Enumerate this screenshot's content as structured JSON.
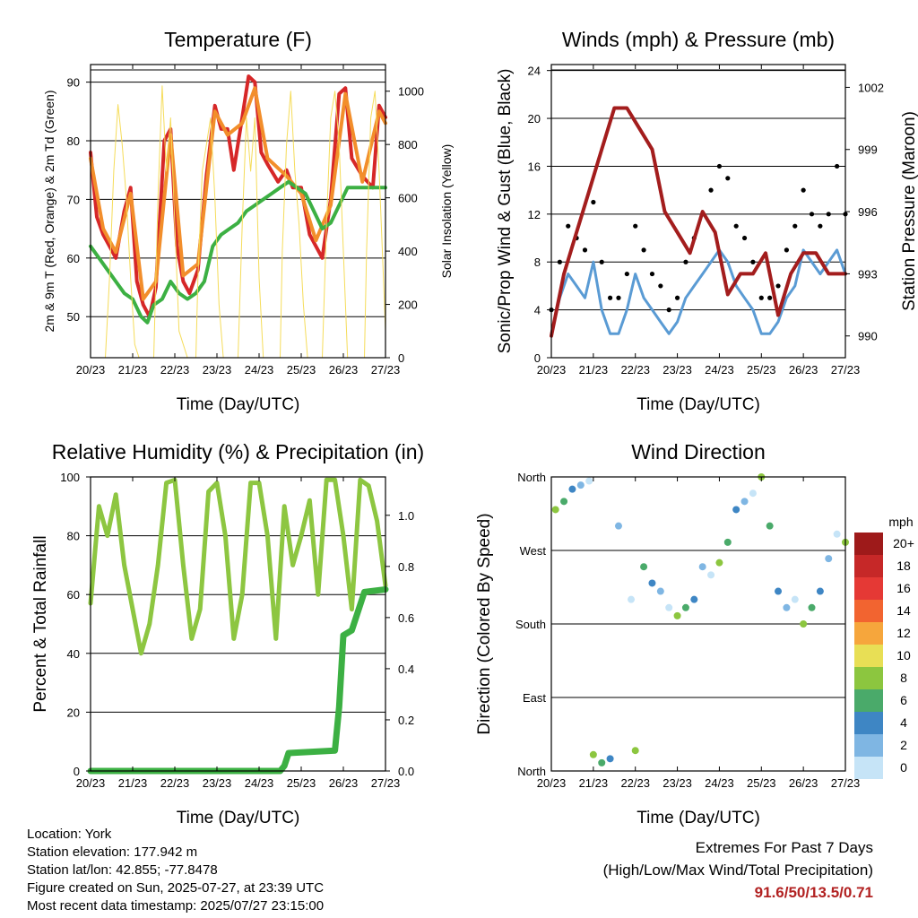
{
  "chart_data": [
    {
      "type": "line",
      "title": "Temperature (F)",
      "xlabel": "Time (Day/UTC)",
      "ylabel": "2m & 9m T (Red, Orange) & 2m Td (Green)",
      "ylabel_right": "Solar Insolation (Yellow)",
      "xticks": [
        "20/23",
        "21/23",
        "22/23",
        "23/23",
        "24/23",
        "25/23",
        "26/23",
        "27/23"
      ],
      "ylim": [
        43,
        93
      ],
      "yticks": [
        50,
        60,
        70,
        80,
        90
      ],
      "y2lim": [
        0,
        1100
      ],
      "y2ticks": [
        0,
        200,
        400,
        600,
        800,
        1000
      ],
      "grid": true,
      "series": [
        {
          "color": "#d62728",
          "x": [
            0,
            0.15,
            0.3,
            0.45,
            0.6,
            0.8,
            0.95,
            1.1,
            1.25,
            1.4,
            1.55,
            1.75,
            1.9,
            2.05,
            2.2,
            2.35,
            2.55,
            2.75,
            2.95,
            3.1,
            3.25,
            3.4,
            3.6,
            3.75,
            3.9,
            4.05,
            4.2,
            4.45,
            4.65,
            4.8,
            5.0,
            5.2,
            5.35,
            5.5,
            5.7,
            5.9,
            6.05,
            6.2,
            6.45,
            6.7,
            6.85,
            7.0
          ],
          "values": [
            78,
            67,
            64,
            62,
            60,
            68,
            72,
            56,
            52,
            50,
            55,
            80,
            82,
            62,
            56,
            54,
            58,
            74,
            86,
            82,
            82,
            75,
            84,
            91,
            90,
            78,
            76,
            73,
            75,
            72,
            72,
            64,
            62,
            60,
            70,
            88,
            89,
            77,
            74,
            72,
            86,
            84
          ]
        },
        {
          "color": "#f28e2b",
          "x": [
            0,
            0.3,
            0.6,
            0.95,
            1.25,
            1.55,
            1.9,
            2.2,
            2.55,
            2.95,
            3.25,
            3.6,
            3.9,
            4.2,
            4.65,
            5.0,
            5.35,
            5.7,
            6.05,
            6.45,
            6.85,
            7.0
          ],
          "values": [
            77,
            65,
            61,
            71,
            53,
            56,
            81,
            57,
            59,
            85,
            81,
            83,
            89,
            77,
            74,
            71,
            63,
            69,
            88,
            73,
            85,
            83
          ]
        },
        {
          "color": "#3cb043",
          "x": [
            0,
            0.2,
            0.4,
            0.6,
            0.8,
            1.0,
            1.2,
            1.35,
            1.5,
            1.7,
            1.9,
            2.1,
            2.3,
            2.5,
            2.7,
            2.9,
            3.1,
            3.3,
            3.5,
            3.7,
            3.9,
            4.1,
            4.3,
            4.5,
            4.7,
            4.9,
            5.1,
            5.3,
            5.5,
            5.7,
            5.9,
            6.1,
            6.3,
            6.5,
            6.7,
            6.9,
            7.0
          ],
          "values": [
            62,
            60,
            58,
            56,
            54,
            53,
            50,
            49,
            52,
            53,
            56,
            54,
            53,
            54,
            56,
            62,
            64,
            65,
            66,
            68,
            69,
            70,
            71,
            72,
            73,
            72,
            71,
            68,
            65,
            66,
            69,
            72,
            72,
            72,
            72,
            72,
            72
          ]
        },
        {
          "color": "#f5dc5a",
          "x": [
            0,
            0.1,
            0.2,
            0.35,
            0.45,
            0.55,
            0.65,
            0.75,
            0.85,
            0.95,
            1.05,
            1.15,
            1.35,
            1.5,
            1.6,
            1.7,
            1.8,
            1.9,
            2.0,
            2.1,
            2.3,
            2.5,
            2.55,
            2.65,
            2.75,
            2.85,
            2.95,
            3.05,
            3.15,
            3.35,
            3.5,
            3.6,
            3.7,
            3.8,
            3.9,
            4.0,
            4.1,
            4.3,
            4.5,
            4.55,
            4.65,
            4.75,
            4.85,
            4.95,
            5.05,
            5.15,
            5.35,
            5.5,
            5.6,
            5.7,
            5.8,
            5.9,
            6.0,
            6.1,
            6.3,
            6.5,
            6.55,
            6.65,
            6.75,
            6.85,
            6.95,
            7.0
          ],
          "values": [
            0,
            0,
            0,
            0,
            300,
            700,
            950,
            800,
            600,
            300,
            50,
            0,
            0,
            0,
            600,
            1020,
            700,
            900,
            500,
            100,
            0,
            0,
            300,
            700,
            800,
            900,
            600,
            200,
            0,
            0,
            0,
            500,
            900,
            700,
            900,
            300,
            0,
            0,
            0,
            400,
            800,
            1000,
            700,
            500,
            200,
            0,
            0,
            0,
            500,
            900,
            1000,
            800,
            400,
            0,
            0,
            0,
            400,
            900,
            1000,
            700,
            300,
            100
          ],
          "axis": "right"
        }
      ]
    },
    {
      "type": "line",
      "title": "Winds (mph) & Pressure (mb)",
      "xlabel": "Time (Day/UTC)",
      "ylabel": "Sonic/Prop Wind & Gust (Blue, Black)",
      "ylabel_right": "Station Pressure (Maroon)",
      "xticks": [
        "20/23",
        "21/23",
        "22/23",
        "23/23",
        "24/23",
        "25/23",
        "26/23",
        "27/23"
      ],
      "ylim": [
        0,
        24.5
      ],
      "yticks": [
        0,
        4,
        8,
        12,
        16,
        20,
        24
      ],
      "y2lim": [
        988.95,
        1003.1
      ],
      "y2ticks": [
        990,
        993,
        996,
        999,
        1002
      ],
      "grid": true,
      "series": [
        {
          "color": "#5a9bd4",
          "x": [
            0,
            0.2,
            0.4,
            0.6,
            0.8,
            1.0,
            1.2,
            1.4,
            1.6,
            1.8,
            2.0,
            2.2,
            2.4,
            2.6,
            2.8,
            3.0,
            3.2,
            3.4,
            3.6,
            3.8,
            4.0,
            4.2,
            4.4,
            4.6,
            4.8,
            5.0,
            5.2,
            5.4,
            5.6,
            5.8,
            6.0,
            6.2,
            6.4,
            6.6,
            6.8,
            7.0
          ],
          "values": [
            2,
            5,
            7,
            6,
            5,
            8,
            4,
            2,
            2,
            4,
            7,
            5,
            4,
            3,
            2,
            3,
            5,
            6,
            7,
            8,
            9,
            8,
            6,
            5,
            4,
            2,
            2,
            3,
            5,
            6,
            9,
            8,
            7,
            8,
            9,
            7
          ]
        },
        {
          "color": "#000000",
          "x": [
            0,
            0.2,
            0.4,
            0.6,
            0.8,
            1.0,
            1.2,
            1.4,
            1.6,
            1.8,
            2.0,
            2.2,
            2.4,
            2.6,
            2.8,
            3.0,
            3.2,
            3.4,
            3.6,
            3.8,
            4.0,
            4.2,
            4.4,
            4.6,
            4.8,
            5.0,
            5.2,
            5.4,
            5.6,
            5.8,
            6.0,
            6.2,
            6.4,
            6.6,
            6.8,
            7.0
          ],
          "values": [
            4,
            8,
            11,
            10,
            9,
            13,
            8,
            5,
            5,
            7,
            11,
            9,
            7,
            6,
            4,
            5,
            8,
            10,
            12,
            14,
            16,
            15,
            11,
            10,
            8,
            5,
            5,
            6,
            9,
            11,
            14,
            12,
            11,
            12,
            16,
            12
          ]
        },
        {
          "color": "#a31d1d",
          "x": [
            0,
            0.3,
            0.6,
            0.9,
            1.2,
            1.5,
            1.8,
            2.1,
            2.4,
            2.7,
            3.0,
            3.3,
            3.6,
            3.9,
            4.2,
            4.5,
            4.8,
            5.1,
            5.4,
            5.7,
            6.0,
            6.3,
            6.6,
            6.9,
            7.0
          ],
          "values": [
            990,
            993,
            995,
            997,
            999,
            1001,
            1001,
            1000,
            999,
            996,
            995,
            994,
            996,
            995,
            992,
            993,
            993,
            994,
            991,
            993,
            994,
            994,
            993,
            993,
            993
          ],
          "axis": "right"
        }
      ]
    },
    {
      "type": "line",
      "title": "Relative Humidity (%) & Precipitation (in)",
      "xlabel": "Time (Day/UTC)",
      "ylabel": "Percent & Total Rainfall",
      "xticks": [
        "20/23",
        "21/23",
        "22/23",
        "23/23",
        "24/23",
        "25/23",
        "26/23",
        "27/23"
      ],
      "ylim": [
        0,
        100
      ],
      "yticks": [
        0,
        20,
        40,
        60,
        80,
        100
      ],
      "y2lim": [
        0,
        1.15
      ],
      "y2ticks": [
        0.0,
        0.2,
        0.4,
        0.6,
        0.8,
        1.0
      ],
      "grid": true,
      "series": [
        {
          "color": "#8dc641",
          "x": [
            0,
            0.2,
            0.4,
            0.6,
            0.8,
            1.0,
            1.2,
            1.4,
            1.6,
            1.8,
            2.0,
            2.2,
            2.4,
            2.6,
            2.8,
            3.0,
            3.2,
            3.4,
            3.6,
            3.8,
            4.0,
            4.2,
            4.4,
            4.6,
            4.8,
            5.0,
            5.2,
            5.4,
            5.6,
            5.8,
            6.0,
            6.2,
            6.4,
            6.6,
            6.8,
            7.0
          ],
          "values": [
            57,
            90,
            80,
            94,
            70,
            55,
            40,
            50,
            70,
            98,
            99,
            70,
            45,
            55,
            95,
            98,
            80,
            45,
            60,
            98,
            98,
            80,
            45,
            90,
            70,
            80,
            92,
            60,
            99,
            99,
            80,
            55,
            99,
            97,
            85,
            63
          ]
        },
        {
          "color": "#3cb043",
          "x": [
            0,
            4.5,
            4.6,
            4.7,
            5.8,
            5.9,
            6.0,
            6.2,
            6.3,
            6.5,
            7.0
          ],
          "values": [
            0,
            0,
            0.02,
            0.07,
            0.08,
            0.25,
            0.53,
            0.55,
            0.6,
            0.7,
            0.71
          ],
          "axis": "right"
        }
      ]
    },
    {
      "type": "scatter",
      "title": "Wind Direction",
      "xlabel": "Time (Day/UTC)",
      "ylabel": "Direction (Colored By Speed)",
      "xticks": [
        "20/23",
        "21/23",
        "22/23",
        "23/23",
        "24/23",
        "25/23",
        "26/23",
        "27/23"
      ],
      "yticks": [
        "North",
        "East",
        "South",
        "West",
        "North"
      ],
      "ylim": [
        0,
        360
      ],
      "grid": true,
      "legend": {
        "title": "mph",
        "labels": [
          "20+",
          "18",
          "16",
          "14",
          "12",
          "10",
          "8",
          "6",
          "4",
          "2",
          "0"
        ],
        "colors": [
          "#9e1a1a",
          "#c62828",
          "#e53935",
          "#f26430",
          "#f6a63c",
          "#e8df55",
          "#8cc63f",
          "#4aaa6a",
          "#3e86c4",
          "#7fb6e3",
          "#c6e4f7"
        ],
        "placement": "right"
      },
      "x": [
        0.1,
        0.3,
        0.5,
        0.7,
        0.9,
        1.0,
        1.2,
        1.4,
        1.6,
        1.9,
        2.0,
        2.2,
        2.4,
        2.6,
        2.8,
        3.0,
        3.2,
        3.4,
        3.6,
        3.8,
        4.0,
        4.2,
        4.4,
        4.6,
        4.8,
        5.0,
        5.2,
        5.4,
        5.6,
        5.8,
        6.0,
        6.2,
        6.4,
        6.6,
        6.8,
        7.0
      ],
      "values": [
        320,
        330,
        345,
        350,
        355,
        20,
        10,
        15,
        300,
        210,
        25,
        250,
        230,
        220,
        200,
        190,
        200,
        210,
        250,
        240,
        255,
        280,
        320,
        330,
        340,
        360,
        300,
        220,
        200,
        210,
        180,
        200,
        220,
        260,
        290,
        280
      ]
    }
  ],
  "info": {
    "location": "Location: York",
    "elevation": "Station elevation: 177.942 m",
    "latlon": "Station lat/lon: 42.855; -77.8478",
    "created": "Figure created on Sun, 2025-07-27, at 23:39 UTC",
    "recent": "Most recent data timestamp: 2025/07/27 23:15:00"
  },
  "extremes": {
    "line1": "Extremes For Past 7 Days",
    "line2": "(High/Low/Max Wind/Total Precipitation)",
    "values": "91.6/50/13.5/0.71"
  }
}
